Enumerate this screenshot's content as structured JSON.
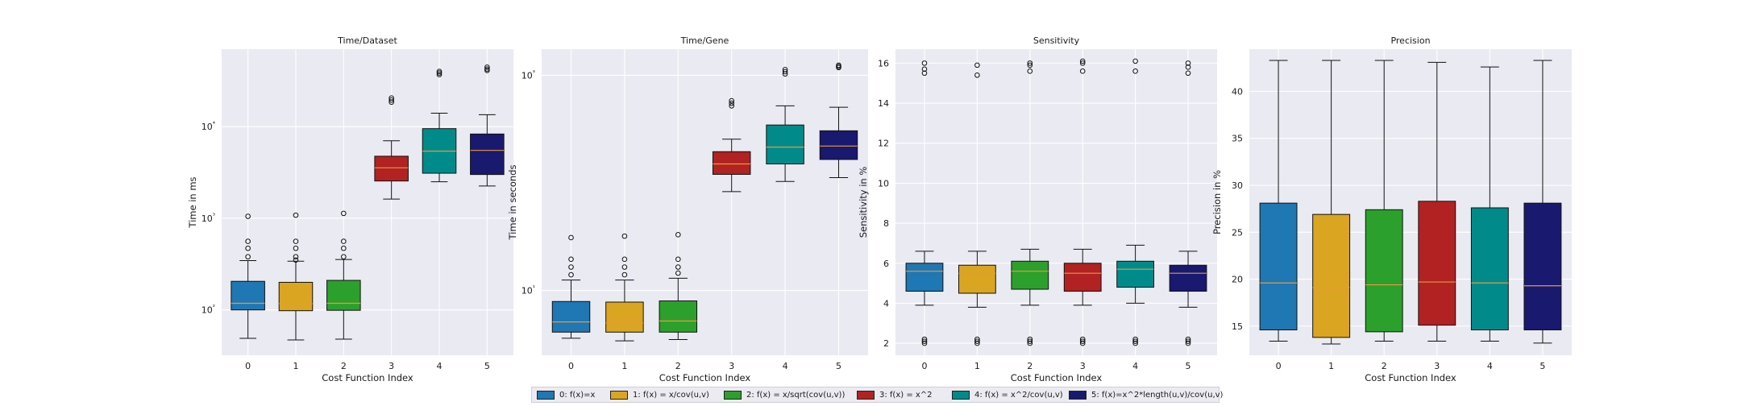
{
  "legend": {
    "entries": [
      "0: f(x)=x",
      "1: f(x) = x/cov(u,v)",
      "2: f(x) = x/sqrt(cov(u,v))",
      "3: f(x) = x^2",
      "4: f(x) = x^2/cov(u,v)",
      "5: f(x)=x^2*length(u,v)/cov(u,v)"
    ]
  },
  "colors": [
    "#1f77b4",
    "#daa520",
    "#2ca02c",
    "#b22222",
    "#008b8b",
    "#191970"
  ],
  "chart_data": [
    {
      "type": "box",
      "title": "Time/Dataset",
      "xlabel": "Cost Function Index",
      "ylabel": "Time in ms",
      "yscale": "log",
      "ylim": [
        32,
        70000
      ],
      "yticks": [
        100,
        1000,
        10000
      ],
      "ytick_labels": [
        "10²",
        "10³",
        "10⁴"
      ],
      "categories": [
        "0",
        "1",
        "2",
        "3",
        "4",
        "5"
      ],
      "boxes": [
        {
          "whislo": 49,
          "q1": 100,
          "med": 118,
          "q3": 205,
          "whishi": 345,
          "fliers": [
            380,
            470,
            560,
            1050
          ]
        },
        {
          "whislo": 47,
          "q1": 98,
          "med": 117,
          "q3": 200,
          "whishi": 340,
          "fliers": [
            350,
            380,
            470,
            560,
            1080
          ]
        },
        {
          "whislo": 48,
          "q1": 99,
          "med": 118,
          "q3": 210,
          "whishi": 355,
          "fliers": [
            380,
            470,
            560,
            1130
          ]
        },
        {
          "whislo": 1620,
          "q1": 2550,
          "med": 3550,
          "q3": 4750,
          "whishi": 7000,
          "fliers": [
            18500,
            19500,
            20500
          ]
        },
        {
          "whislo": 2500,
          "q1": 3100,
          "med": 5400,
          "q3": 9500,
          "whishi": 14000,
          "fliers": [
            37000,
            38500,
            40000
          ]
        },
        {
          "whislo": 2250,
          "q1": 3000,
          "med": 5500,
          "q3": 8300,
          "whishi": 13500,
          "fliers": [
            41000,
            42500,
            44500
          ]
        }
      ]
    },
    {
      "type": "box",
      "title": "Time/Gene",
      "xlabel": "Cost Function Index",
      "ylabel": "Time in seconds",
      "yscale": "log",
      "ylim": [
        2.5,
        1750
      ],
      "yticks": [
        10,
        1000
      ],
      "ytick_labels": [
        "10¹",
        "10³"
      ],
      "categories": [
        "0",
        "1",
        "2",
        "3",
        "4",
        "5"
      ],
      "boxes": [
        {
          "whislo": 3.6,
          "q1": 4.1,
          "med": 5.1,
          "q3": 7.9,
          "whishi": 12.5,
          "fliers": [
            14,
            16.5,
            19.5,
            31
          ]
        },
        {
          "whislo": 3.4,
          "q1": 4.1,
          "med": 5.0,
          "q3": 7.8,
          "whishi": 12.5,
          "fliers": [
            14,
            16.5,
            19.5,
            32
          ]
        },
        {
          "whislo": 3.5,
          "q1": 4.1,
          "med": 5.2,
          "q3": 8.0,
          "whishi": 13.0,
          "fliers": [
            14.5,
            16.5,
            19.5,
            33
          ]
        },
        {
          "whislo": 83,
          "q1": 120,
          "med": 150,
          "q3": 195,
          "whishi": 255,
          "fliers": [
            520,
            550,
            580
          ]
        },
        {
          "whislo": 103,
          "q1": 150,
          "med": 215,
          "q3": 345,
          "whishi": 520,
          "fliers": [
            1030,
            1080,
            1130
          ]
        },
        {
          "whislo": 112,
          "q1": 165,
          "med": 220,
          "q3": 305,
          "whishi": 505,
          "fliers": [
            1180,
            1210,
            1240
          ]
        }
      ]
    },
    {
      "type": "box",
      "title": "Sensitivity",
      "xlabel": "Cost Function Index",
      "ylabel": "Sensitivity in %",
      "yscale": "linear",
      "ylim": [
        1.4,
        16.7
      ],
      "yticks": [
        2,
        4,
        6,
        8,
        10,
        12,
        14,
        16
      ],
      "ytick_labels": [
        "2",
        "4",
        "6",
        "8",
        "10",
        "12",
        "14",
        "16"
      ],
      "categories": [
        "0",
        "1",
        "2",
        "3",
        "4",
        "5"
      ],
      "boxes": [
        {
          "whislo": 3.9,
          "q1": 4.6,
          "med": 5.6,
          "q3": 6.0,
          "whishi": 6.6,
          "fliers": [
            2.0,
            2.1,
            2.2,
            15.5,
            15.7,
            16.0
          ]
        },
        {
          "whislo": 3.8,
          "q1": 4.5,
          "med": 5.5,
          "q3": 5.9,
          "whishi": 6.6,
          "fliers": [
            2.0,
            2.1,
            2.2,
            15.4,
            15.9
          ]
        },
        {
          "whislo": 3.9,
          "q1": 4.7,
          "med": 5.6,
          "q3": 6.1,
          "whishi": 6.7,
          "fliers": [
            2.0,
            2.1,
            2.2,
            15.6,
            15.9,
            16.0
          ]
        },
        {
          "whislo": 3.9,
          "q1": 4.6,
          "med": 5.5,
          "q3": 6.0,
          "whishi": 6.7,
          "fliers": [
            2.0,
            2.1,
            2.2,
            15.6,
            16.0,
            16.1
          ]
        },
        {
          "whislo": 4.0,
          "q1": 4.8,
          "med": 5.7,
          "q3": 6.1,
          "whishi": 6.9,
          "fliers": [
            2.0,
            2.1,
            2.2,
            15.6,
            16.1
          ]
        },
        {
          "whislo": 3.8,
          "q1": 4.6,
          "med": 5.5,
          "q3": 5.9,
          "whishi": 6.6,
          "fliers": [
            2.0,
            2.1,
            2.2,
            15.5,
            15.8,
            16.0
          ]
        }
      ]
    },
    {
      "type": "box",
      "title": "Precision",
      "xlabel": "Cost Function Index",
      "ylabel": "Precision in %",
      "yscale": "linear",
      "ylim": [
        11.9,
        44.5
      ],
      "yticks": [
        15,
        20,
        25,
        30,
        35,
        40
      ],
      "ytick_labels": [
        "15",
        "20",
        "25",
        "30",
        "35",
        "40"
      ],
      "categories": [
        "0",
        "1",
        "2",
        "3",
        "4",
        "5"
      ],
      "boxes": [
        {
          "whislo": 13.4,
          "q1": 14.6,
          "med": 19.6,
          "q3": 28.1,
          "whishi": 43.3,
          "fliers": []
        },
        {
          "whislo": 13.1,
          "q1": 13.8,
          "med": 19.1,
          "q3": 26.9,
          "whishi": 43.3,
          "fliers": []
        },
        {
          "whislo": 13.4,
          "q1": 14.4,
          "med": 19.4,
          "q3": 27.4,
          "whishi": 43.3,
          "fliers": []
        },
        {
          "whislo": 13.4,
          "q1": 15.1,
          "med": 19.7,
          "q3": 28.3,
          "whishi": 43.1,
          "fliers": []
        },
        {
          "whislo": 13.4,
          "q1": 14.6,
          "med": 19.6,
          "q3": 27.6,
          "whishi": 42.6,
          "fliers": []
        },
        {
          "whislo": 13.2,
          "q1": 14.6,
          "med": 19.3,
          "q3": 28.1,
          "whishi": 43.3,
          "fliers": []
        }
      ]
    }
  ]
}
